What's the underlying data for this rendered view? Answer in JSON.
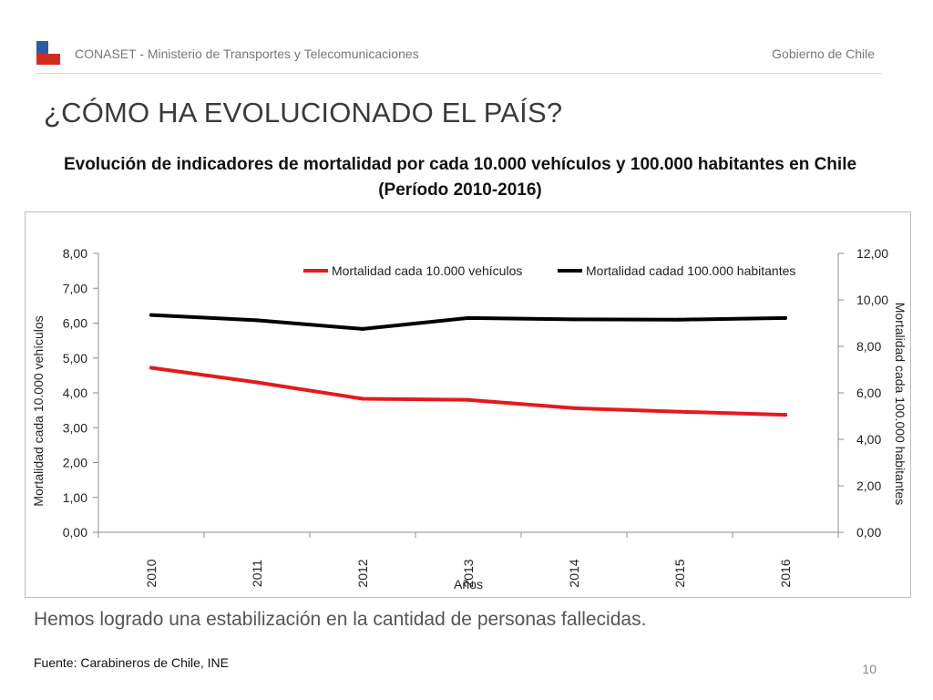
{
  "header": {
    "org": "CONASET - Ministerio de Transportes y Telecomunicaciones",
    "gov": "Gobierno de Chile",
    "flag_colors": {
      "blue": "#2b5ca8",
      "white": "#ffffff",
      "red": "#d52b1e"
    }
  },
  "slide_title": "¿CÓMO HA EVOLUCIONADO EL PAÍS?",
  "chart_heading": {
    "line1": "Evolución de indicadores de mortalidad por cada 10.000 vehículos y 100.000 habitantes en Chile",
    "line2": "(Período 2010-2016)"
  },
  "chart_data": {
    "type": "line",
    "categories": [
      "2010",
      "2011",
      "2012",
      "2013",
      "2014",
      "2015",
      "2016"
    ],
    "xlabel": "Años",
    "ylabel_left": "Mortalidad cada 10.000 vehículos",
    "ylabel_right": "Mortalidad cada 100.000 habitantes",
    "y_left": {
      "min": 0,
      "max": 8,
      "step": 1,
      "ticks": [
        "0,00",
        "1,00",
        "2,00",
        "3,00",
        "4,00",
        "5,00",
        "6,00",
        "7,00",
        "8,00"
      ]
    },
    "y_right": {
      "min": 0,
      "max": 12,
      "step": 2,
      "ticks": [
        "0,00",
        "2,00",
        "4,00",
        "6,00",
        "8,00",
        "10,00",
        "12,00"
      ]
    },
    "series": [
      {
        "name": "Mortalidad cada 10.000 vehículos",
        "axis": "left",
        "color": "#e31a1c",
        "values": [
          4.72,
          4.3,
          3.83,
          3.8,
          3.56,
          3.46,
          3.37
        ]
      },
      {
        "name": "Mortalidad cadad 100.000 habitantes",
        "axis": "right",
        "color": "#000000",
        "values": [
          9.35,
          9.12,
          8.75,
          9.22,
          9.16,
          9.15,
          9.22
        ]
      }
    ],
    "legend_position": "top-right",
    "grid": false
  },
  "tagline": "Hemos logrado una estabilización en la cantidad de personas fallecidas.",
  "source": "Fuente: Carabineros de Chile, INE",
  "page_number": "10"
}
